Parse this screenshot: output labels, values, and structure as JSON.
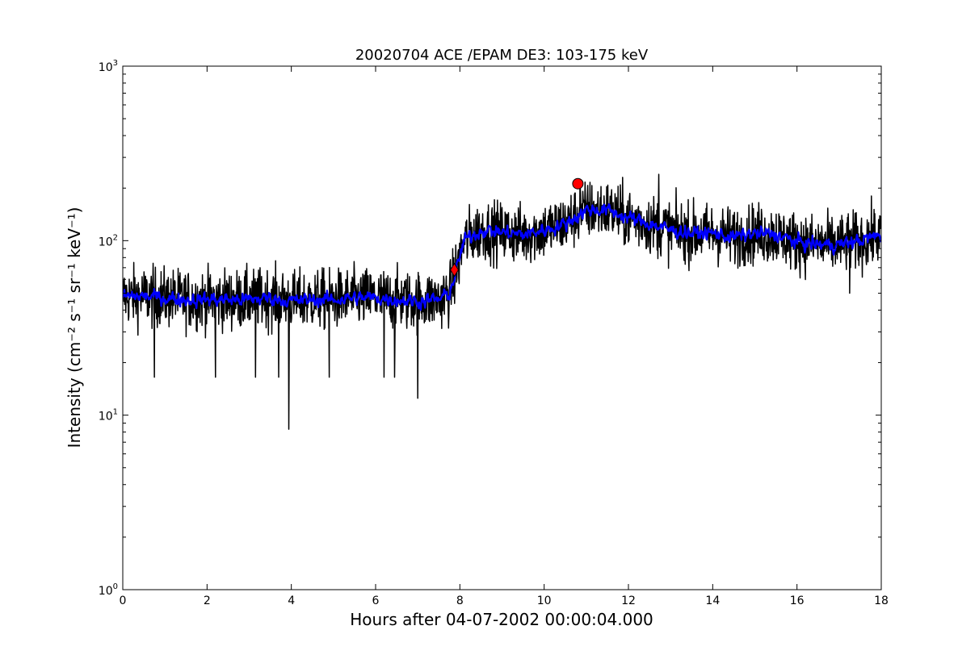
{
  "chart_data": {
    "type": "line",
    "title": "20020704 ACE /EPAM DE3: 103-175 keV",
    "xlabel": "Hours after 04-07-2002 00:00:04.000",
    "ylabel": "Intensity (cm⁻² s⁻¹ sr⁻¹ keV⁻¹)",
    "xlim": [
      0,
      18
    ],
    "ylim": [
      1,
      1000
    ],
    "yscale": "log",
    "grid": false,
    "x_ticks": [
      0,
      2,
      4,
      6,
      8,
      10,
      12,
      14,
      16,
      18
    ],
    "x_tick_labels": [
      "0",
      "2",
      "4",
      "6",
      "8",
      "10",
      "12",
      "14",
      "16",
      "18"
    ],
    "y_ticks": [
      1,
      10,
      100,
      1000
    ],
    "y_tick_labels": [
      {
        "base": "10",
        "exp": "0"
      },
      {
        "base": "10",
        "exp": "1"
      },
      {
        "base": "10",
        "exp": "2"
      },
      {
        "base": "10",
        "exp": "3"
      }
    ],
    "series": [
      {
        "color": "#000000",
        "style": "raw-noisy",
        "x": [
          0,
          0.5,
          1,
          1.5,
          2,
          2.5,
          3,
          3.5,
          4,
          4.5,
          5,
          5.5,
          6,
          6.5,
          7,
          7.5,
          7.75,
          7.9,
          8.1,
          8.5,
          9,
          9.5,
          10,
          10.5,
          11,
          11.5,
          12,
          12.5,
          13,
          13.5,
          14,
          14.5,
          15,
          15.5,
          16,
          16.5,
          17,
          17.5,
          18
        ],
        "y": [
          48,
          48,
          47,
          46,
          46,
          46,
          46,
          47,
          45,
          46,
          46,
          47,
          47,
          46,
          45,
          46,
          50,
          65,
          100,
          115,
          112,
          108,
          115,
          125,
          150,
          150,
          135,
          125,
          115,
          110,
          110,
          105,
          110,
          108,
          98,
          95,
          95,
          100,
          108
        ],
        "spikes": [
          {
            "x": 3.94,
            "y": 8.3
          },
          {
            "x": 7.0,
            "y": 12.5
          },
          {
            "x": 0.75,
            "y": 16.5
          },
          {
            "x": 2.2,
            "y": 16.5
          },
          {
            "x": 3.15,
            "y": 16.5
          },
          {
            "x": 3.7,
            "y": 16.5
          },
          {
            "x": 4.9,
            "y": 16.5
          },
          {
            "x": 6.2,
            "y": 16.5
          },
          {
            "x": 6.45,
            "y": 16.5
          },
          {
            "x": 12.72,
            "y": 240
          },
          {
            "x": 10.85,
            "y": 215
          },
          {
            "x": 17.25,
            "y": 50
          }
        ]
      },
      {
        "color": "#0000ff",
        "style": "smoothed",
        "x": [
          0,
          0.5,
          1,
          1.5,
          2,
          2.5,
          3,
          3.5,
          4,
          4.5,
          5,
          5.5,
          6,
          6.5,
          7,
          7.5,
          7.75,
          7.9,
          8.1,
          8.5,
          9,
          9.5,
          10,
          10.5,
          11,
          11.5,
          12,
          12.5,
          13,
          13.5,
          14,
          14.5,
          15,
          15.5,
          16,
          16.5,
          17,
          17.5,
          18
        ],
        "y": [
          48,
          48,
          47,
          46,
          46,
          46,
          46,
          47,
          45,
          46,
          46,
          47,
          47,
          46,
          45,
          46,
          50,
          65,
          100,
          115,
          112,
          108,
          115,
          125,
          150,
          150,
          135,
          125,
          115,
          110,
          110,
          105,
          110,
          108,
          98,
          95,
          95,
          100,
          108
        ]
      }
    ],
    "markers": [
      {
        "shape": "diamond",
        "x": 7.87,
        "y": 68,
        "color": "#ff0000"
      },
      {
        "shape": "circle",
        "x": 10.8,
        "y": 212,
        "color": "#ff0000"
      }
    ]
  }
}
